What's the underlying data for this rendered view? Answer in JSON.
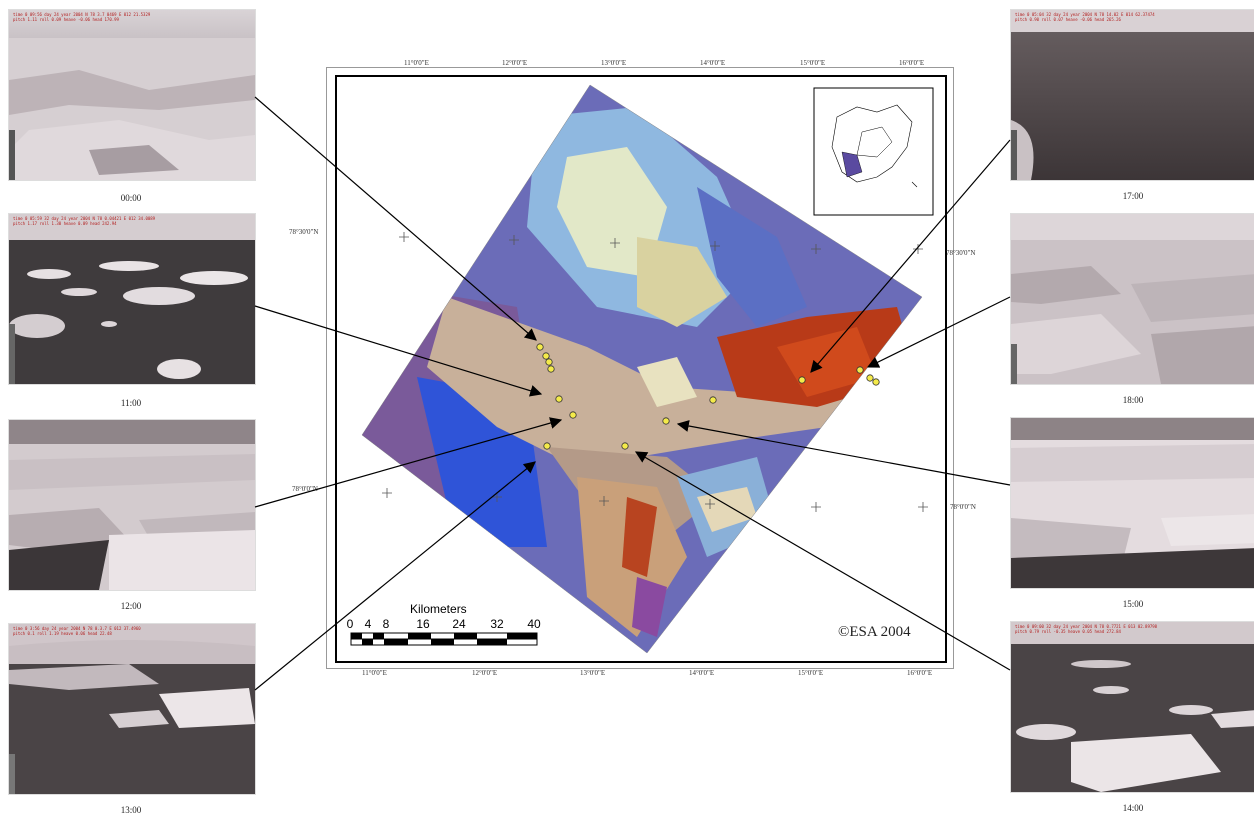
{
  "photos": [
    {
      "time": "00:00",
      "text": [
        "time 0 09:56 day 24 year 2004 N 78 3.7 0469 E 012 21.5329",
        "pitch 1.11 roll 0.09 heave -0.06 head 170.99"
      ]
    },
    {
      "time": "11:00",
      "text": [
        "time 0 05:59 32 day 24 year 2004 N 78 0.04421 E 012 34.0089",
        "pitch 1.17 roll 1.30 heave 0.09 head 242.94"
      ]
    },
    {
      "time": "12:00",
      "text": [
        "",
        ""
      ]
    },
    {
      "time": "13:00",
      "text": [
        "time 0 3:56 day 24 year 2004 N 78 0.3.7 E 012 37.4960",
        "pitch 0.1 roll 1.19 heave 0.06 head 22.48"
      ]
    },
    {
      "time": "17:00",
      "text": [
        "time 0 05:04 32 day 24 year 2004 N 78 14.02 E 014 62.37474",
        "pitch 0.90 roll 0.07 heave -0.06 head 265.26"
      ]
    },
    {
      "time": "18:00",
      "text": [
        "",
        ""
      ]
    },
    {
      "time": "15:00",
      "text": [
        "",
        ""
      ]
    },
    {
      "time": "14:00",
      "text": [
        "time 0 09:00 32 day 24 year 2004 N 78 0.7721 E 013 02.89798",
        "pitch 0.79 roll -0.35 heave 0.05 head 272.84"
      ]
    }
  ],
  "map": {
    "top_ticks": [
      "11°0'0\"E",
      "12°0'0\"E",
      "13°0'0\"E",
      "14°0'0\"E",
      "15°0'0\"E",
      "16°0'0\"E"
    ],
    "bottom_ticks": [
      "11°0'0\"E",
      "12°0'0\"E",
      "13°0'0\"E",
      "14°0'0\"E",
      "15°0'0\"E",
      "16°0'0\"E"
    ],
    "left_ticks": [
      "78°30'0\"N",
      "78°0'0\"N"
    ],
    "right_ticks": [
      "78°30'0\"N",
      "78°0'0\"N"
    ],
    "copyright": "©ESA 2004",
    "scale_label": "Kilometers",
    "scale_numbers": [
      "0",
      "4",
      "8",
      "16",
      "24",
      "32",
      "40"
    ]
  }
}
